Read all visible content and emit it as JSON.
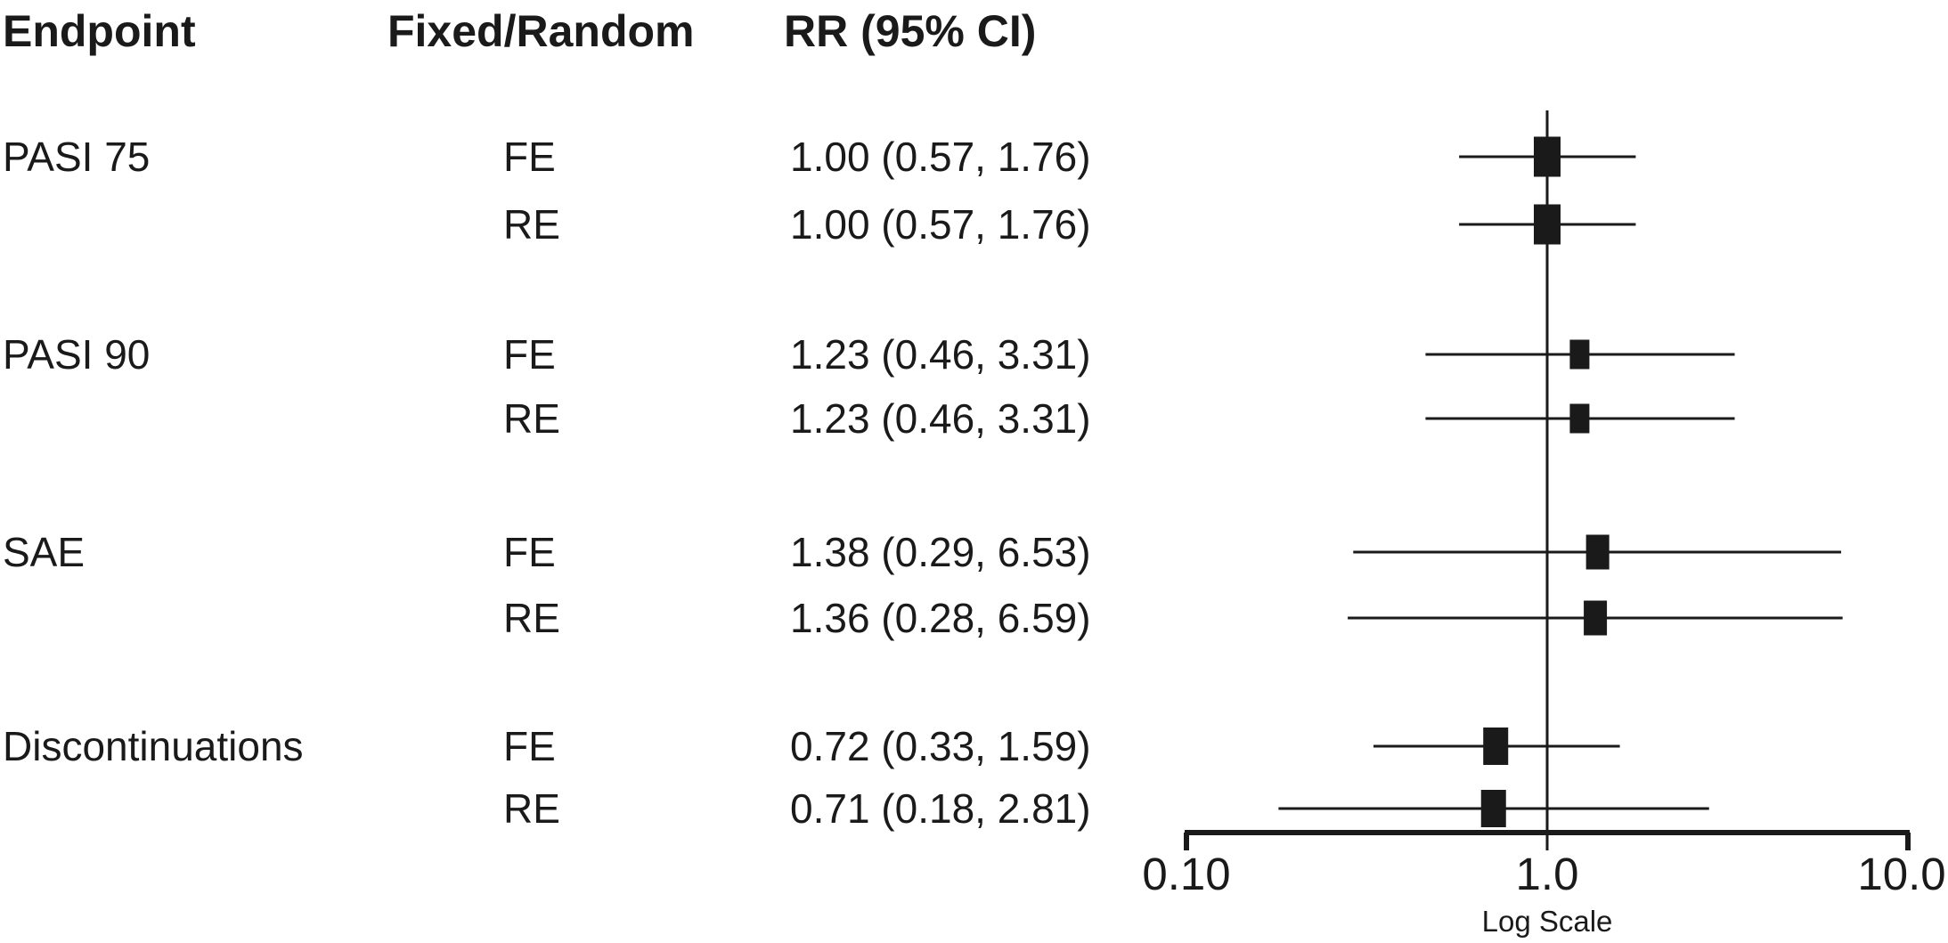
{
  "figure": {
    "type": "forest-plot",
    "background_color": "#ffffff",
    "ink_color": "#1a1a1a"
  },
  "columns": {
    "endpoint": "Endpoint",
    "model": "Fixed/Random",
    "rr": "RR (95% CI)"
  },
  "chart_data": {
    "type": "scatter",
    "subtype": "forest",
    "title": "",
    "xlabel": "Log Scale",
    "x_scale": "log10",
    "x_range": [
      0.1,
      10
    ],
    "reference_line_x": 1.0,
    "x_ticks": [
      {
        "label": "0.10",
        "value": 0.1
      },
      {
        "label": "1.0",
        "value": 1.0
      },
      {
        "label": "10.0",
        "value": 10.0
      }
    ],
    "rows": [
      {
        "endpoint": "PASI 75",
        "model": "FE",
        "rr_text": "1.00 (0.57, 1.76)",
        "rr": 1.0,
        "ci_low": 0.57,
        "ci_high": 1.76,
        "marker_size": 30
      },
      {
        "endpoint": "",
        "model": "RE",
        "rr_text": "1.00 (0.57, 1.76)",
        "rr": 1.0,
        "ci_low": 0.57,
        "ci_high": 1.76,
        "marker_size": 30
      },
      {
        "endpoint": "PASI 90",
        "model": "FE",
        "rr_text": "1.23 (0.46, 3.31)",
        "rr": 1.23,
        "ci_low": 0.46,
        "ci_high": 3.31,
        "marker_size": 22
      },
      {
        "endpoint": "",
        "model": "RE",
        "rr_text": "1.23 (0.46, 3.31)",
        "rr": 1.23,
        "ci_low": 0.46,
        "ci_high": 3.31,
        "marker_size": 22
      },
      {
        "endpoint": "SAE",
        "model": "FE",
        "rr_text": "1.38 (0.29, 6.53)",
        "rr": 1.38,
        "ci_low": 0.29,
        "ci_high": 6.53,
        "marker_size": 26
      },
      {
        "endpoint": "",
        "model": "RE",
        "rr_text": "1.36 (0.28, 6.59)",
        "rr": 1.36,
        "ci_low": 0.28,
        "ci_high": 6.59,
        "marker_size": 26
      },
      {
        "endpoint": "Discontinuations",
        "model": "FE",
        "rr_text": "0.72 (0.33, 1.59)",
        "rr": 0.72,
        "ci_low": 0.33,
        "ci_high": 1.59,
        "marker_size": 28
      },
      {
        "endpoint": "",
        "model": "RE",
        "rr_text": "0.71 (0.18, 2.81)",
        "rr": 0.71,
        "ci_low": 0.18,
        "ci_high": 2.81,
        "marker_size": 28
      }
    ]
  }
}
